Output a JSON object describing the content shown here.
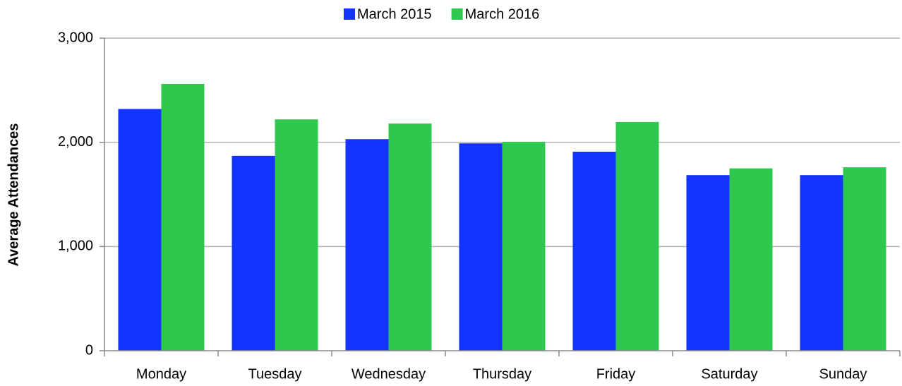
{
  "chart_data": {
    "type": "bar",
    "ylabel": "Average Attendances",
    "categories": [
      "Monday",
      "Tuesday",
      "Wednesday",
      "Thursday",
      "Friday",
      "Saturday",
      "Sunday"
    ],
    "series": [
      {
        "name": "March 2015",
        "color": "#1533ff",
        "values": [
          2320,
          1870,
          2030,
          1990,
          1910,
          1685,
          1685
        ]
      },
      {
        "name": "March 2016",
        "color": "#2ec84f",
        "values": [
          2560,
          2220,
          2180,
          2005,
          2195,
          1750,
          1760
        ]
      }
    ],
    "ylim": [
      0,
      3000
    ],
    "yticks": [
      0,
      {
        "value": 1000,
        "label": "1,000"
      },
      {
        "value": 2000,
        "label": "2,000"
      },
      {
        "value": 3000,
        "label": "3,000"
      }
    ],
    "grid": true,
    "legend": "top"
  }
}
